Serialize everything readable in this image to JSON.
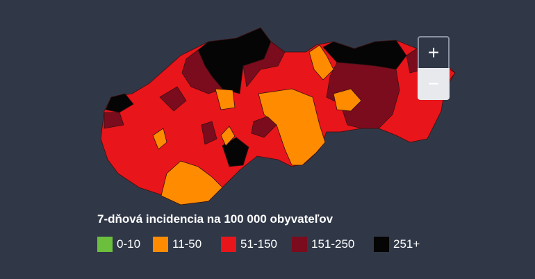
{
  "zoom": {
    "in": "+",
    "out": "−"
  },
  "legend": {
    "title": "7-dňová incidencia na 100 000 obyvateľov",
    "items": [
      {
        "label": "0-10",
        "color": "#6cbf3c"
      },
      {
        "label": "11-50",
        "color": "#ff8c00"
      },
      {
        "label": "51-150",
        "color": "#e8151b"
      },
      {
        "label": "151-250",
        "color": "#7a0c1e"
      },
      {
        "label": "251+",
        "color": "#050505"
      }
    ]
  }
}
